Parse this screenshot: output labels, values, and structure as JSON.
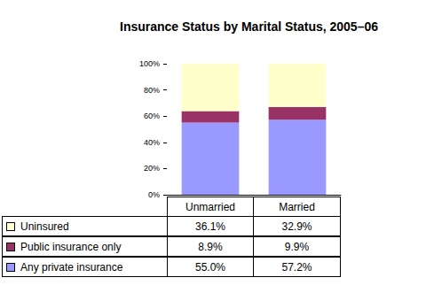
{
  "chart_data": {
    "type": "bar",
    "title": "Insurance Status by Marital Status, 2005–06",
    "categories": [
      "Unmarried",
      "Married"
    ],
    "stacked": true,
    "grid": false,
    "ylim": [
      0,
      100
    ],
    "yticks": [
      {
        "value": 0,
        "label": "0%"
      },
      {
        "value": 20,
        "label": "20%"
      },
      {
        "value": 40,
        "label": "40%"
      },
      {
        "value": 60,
        "label": "60%"
      },
      {
        "value": 80,
        "label": "80%"
      },
      {
        "value": 100,
        "label": "100%"
      }
    ],
    "series": [
      {
        "name": "Any private insurance",
        "color": "#9999ff",
        "values": [
          55.0,
          57.2
        ],
        "value_labels": [
          "55.0%",
          "57.2%"
        ]
      },
      {
        "name": "Public insurance only",
        "color": "#993366",
        "values": [
          8.9,
          9.9
        ],
        "value_labels": [
          "8.9%",
          "9.9%"
        ]
      },
      {
        "name": "Uninsured",
        "color": "#ffffcc",
        "values": [
          36.1,
          32.9
        ],
        "value_labels": [
          "36.1%",
          "32.9%"
        ]
      }
    ]
  }
}
